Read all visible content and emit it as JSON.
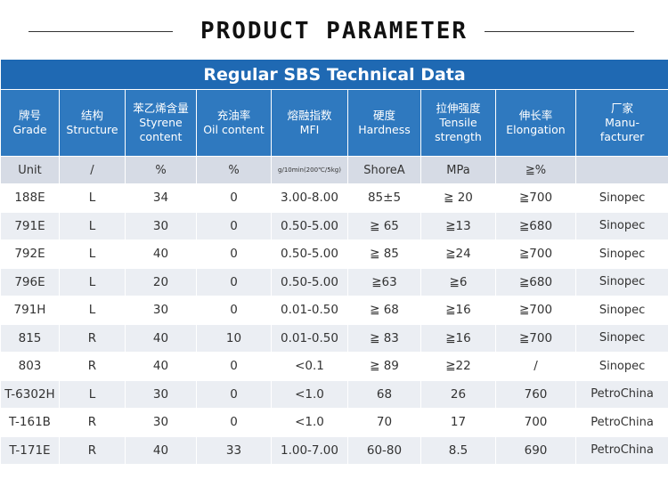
{
  "header": {
    "title": "PRODUCT PARAMETER"
  },
  "table": {
    "banner": "Regular SBS Technical Data",
    "columns": [
      {
        "cn": "牌号",
        "en1": "Grade",
        "en2": ""
      },
      {
        "cn": "结构",
        "en1": "Structure",
        "en2": ""
      },
      {
        "cn": "苯乙烯含量",
        "en1": "Styrene",
        "en2": "content"
      },
      {
        "cn": "充油率",
        "en1": "Oil content",
        "en2": ""
      },
      {
        "cn": "熔融指数",
        "en1": "MFI",
        "en2": ""
      },
      {
        "cn": "硬度",
        "en1": "Hardness",
        "en2": ""
      },
      {
        "cn": "拉伸强度",
        "en1": "Tensile",
        "en2": "strength"
      },
      {
        "cn": "伸长率",
        "en1": "Elongation",
        "en2": ""
      },
      {
        "cn": "厂家",
        "en1": "Manu-",
        "en2": "facturer"
      }
    ],
    "units": [
      "Unit",
      "/",
      "%",
      "%",
      "g/10min(200℃/5kg)",
      "ShoreA",
      "MPa",
      "≧%",
      ""
    ],
    "rows": [
      [
        "188E",
        "L",
        "34",
        "0",
        "3.00-8.00",
        "85±5",
        "≧ 20",
        "≧700",
        "Sinopec"
      ],
      [
        "791E",
        "L",
        "30",
        "0",
        "0.50-5.00",
        "≧ 65",
        "≧13",
        "≧680",
        "Sinopec"
      ],
      [
        "792E",
        "L",
        "40",
        "0",
        "0.50-5.00",
        "≧ 85",
        "≧24",
        "≧700",
        "Sinopec"
      ],
      [
        "796E",
        "L",
        "20",
        "0",
        "0.50-5.00",
        "≧63",
        "≧6",
        "≧680",
        "Sinopec"
      ],
      [
        "791H",
        "L",
        "30",
        "0",
        "0.01-0.50",
        "≧ 68",
        "≧16",
        "≧700",
        "Sinopec"
      ],
      [
        "815",
        "R",
        "40",
        "10",
        "0.01-0.50",
        "≧ 83",
        "≧16",
        "≧700",
        "Sinopec"
      ],
      [
        "803",
        "R",
        "40",
        "0",
        "<0.1",
        "≧ 89",
        "≧22",
        "/",
        "Sinopec"
      ],
      [
        "T-6302H",
        "L",
        "30",
        "0",
        "<1.0",
        "68",
        "26",
        "760",
        "PetroChina"
      ],
      [
        "T-161B",
        "R",
        "30",
        "0",
        "<1.0",
        "70",
        "17",
        "700",
        "PetroChina"
      ],
      [
        "T-171E",
        "R",
        "40",
        "33",
        "1.00-7.00",
        "60-80",
        "8.5",
        "690",
        "PetroChina"
      ]
    ]
  }
}
